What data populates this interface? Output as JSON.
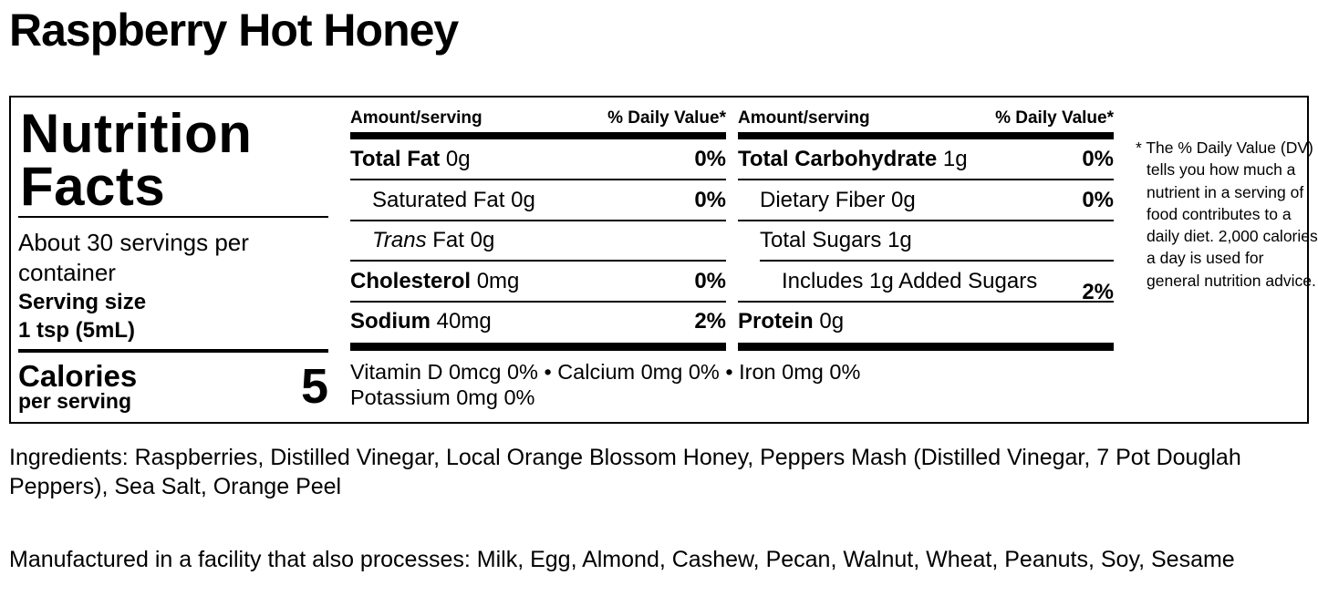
{
  "title": "Raspberry Hot Honey",
  "label": {
    "heading_line1": "Nutrition",
    "heading_line2": "Facts",
    "servings": "About 30 servings per container",
    "serving_size_label": "Serving size",
    "serving_size": "1 tsp (5mL)",
    "calories_label": "Calories",
    "calories_sub": "per serving",
    "calories": "5",
    "columns": [
      {
        "amount_header": "Amount/serving",
        "dv_header": "% Daily Value*",
        "rows": [
          {
            "name": "Total Fat",
            "bold": true,
            "amount": "0g",
            "dv": "0%"
          },
          {
            "name": "Saturated Fat",
            "indent": 1,
            "amount": "0g",
            "dv": "0%"
          },
          {
            "name_italic": "Trans",
            "name": "Fat",
            "indent": 1,
            "amount": "0g"
          },
          {
            "name": "Cholesterol",
            "bold": true,
            "amount": "0mg",
            "dv": "0%"
          },
          {
            "name": "Sodium",
            "bold": true,
            "amount": "40mg",
            "dv": "2%"
          }
        ]
      },
      {
        "amount_header": "Amount/serving",
        "dv_header": "% Daily Value*",
        "rows": [
          {
            "name": "Total Carbohydrate",
            "bold": true,
            "amount": "1g",
            "dv": "0%"
          },
          {
            "name": "Dietary Fiber",
            "indent": 1,
            "amount": "0g",
            "dv": "0%"
          },
          {
            "name": "Total Sugars",
            "indent": 1,
            "amount": "1g"
          },
          {
            "name": "Includes 1g Added Sugars",
            "indent": 2,
            "dv": "2%"
          },
          {
            "name": "Protein",
            "bold": true,
            "amount": "0g"
          }
        ]
      }
    ],
    "vitamins": [
      "Vitamin D 0mcg 0% • Calcium 0mg 0% • Iron 0mg 0%",
      "Potassium 0mg 0%"
    ],
    "footnote": "* The % Daily Value (DV) tells you how much a nutrient in a serving of food contributes to a daily diet. 2,000 calories a day is used for general nutrition advice."
  },
  "ingredients": "Ingredients: Raspberries, Distilled Vinegar, Local Orange Blossom Honey, Peppers Mash (Distilled Vinegar, 7 Pot Douglah Peppers), Sea Salt, Orange Peel",
  "allergens": "Manufactured in a facility that also processes: Milk, Egg, Almond, Cashew, Pecan, Walnut, Wheat, Peanuts, Soy, Sesame"
}
